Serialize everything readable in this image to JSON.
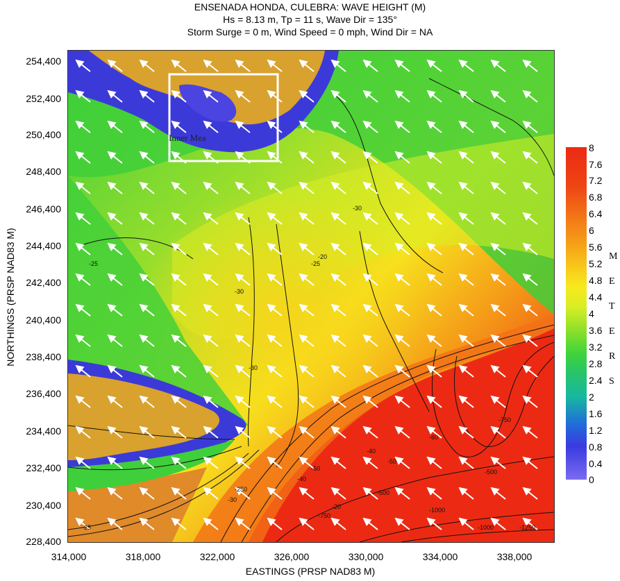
{
  "title_lines": [
    "ENSENADA HONDA, CULEBRA: WAVE HEIGHT (M)",
    "Hs = 8.13 m, Tp = 11 s, Wave Dir = 135°",
    "Storm Surge = 0 m, Wind Speed = 0 mph, Wind Dir = NA"
  ],
  "axes": {
    "x_title": "EASTINGS (PRSP NAD83 M)",
    "y_title": "NORTHINGS (PRSP NAD83 M)",
    "x_ticks": [
      "314,000",
      "318,000",
      "322,000",
      "326,000",
      "330,000",
      "334,000",
      "338,000"
    ],
    "y_ticks": [
      "254,400",
      "252,400",
      "250,400",
      "248,400",
      "246,400",
      "244,400",
      "242,400",
      "240,400",
      "238,400",
      "236,400",
      "234,400",
      "232,400",
      "230,400",
      "228,400"
    ]
  },
  "colorbar": {
    "labels": [
      "8",
      "7.6",
      "7.2",
      "6.8",
      "6.4",
      "6",
      "5.6",
      "5.2",
      "4.8",
      "4.4",
      "4",
      "3.6",
      "3.2",
      "2.8",
      "2.4",
      "2",
      "1.6",
      "1.2",
      "0.8",
      "0.4",
      "0"
    ],
    "units_letters": [
      "M",
      "E",
      "T",
      "E",
      "R",
      "S"
    ]
  },
  "inset": {
    "label": "Inner Mea"
  },
  "contour_labels": [
    "-25",
    "-25",
    "-30",
    "-30",
    "-25",
    "-20",
    "-30",
    "-20",
    "-40",
    "-50",
    "-500",
    "-750",
    "-1000",
    "-1000",
    "-1250",
    "-500",
    "-750",
    "-250",
    "-60",
    "-50",
    "-40",
    "-30"
  ],
  "colors": {
    "land": "#d9a12e",
    "shallow": "#3b3ad8",
    "deep": "#ec2a13",
    "mid": "#f7e21e",
    "green": "#3fcf3a"
  }
}
